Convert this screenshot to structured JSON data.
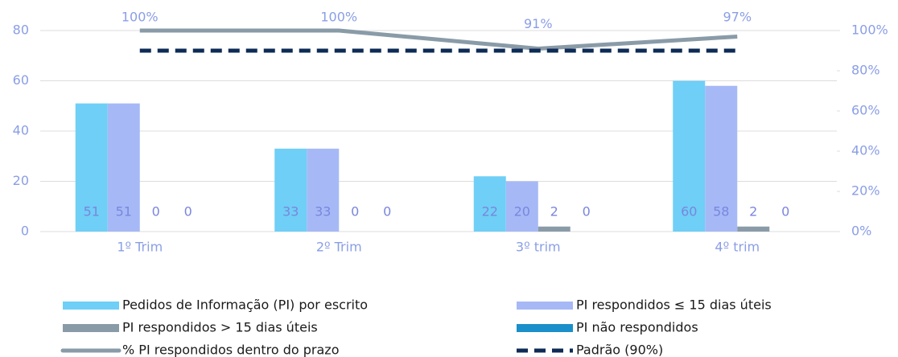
{
  "chart_data": {
    "type": "bar",
    "categories": [
      "1º Trim",
      "2º Trim",
      "3º trim",
      "4º trim"
    ],
    "series": [
      {
        "name": "Pedidos de Informação (PI) por escrito",
        "type": "bar",
        "color": "#6fcff6",
        "values": [
          51,
          33,
          22,
          60
        ]
      },
      {
        "name": "PI respondidos ≤ 15 dias úteis",
        "type": "bar",
        "color": "#a6b9f6",
        "values": [
          51,
          33,
          20,
          58
        ]
      },
      {
        "name": "PI respondidos > 15 dias úteis",
        "type": "bar",
        "color": "#8a9ba8",
        "values": [
          0,
          0,
          2,
          2
        ]
      },
      {
        "name": "PI não respondidos",
        "type": "bar",
        "color": "#1b8fc9",
        "values": [
          0,
          0,
          0,
          0
        ]
      },
      {
        "name": "% PI respondidos dentro do prazo",
        "type": "line",
        "axis": "y2",
        "color": "#8a9ba8",
        "values": [
          100,
          100,
          91,
          97
        ],
        "value_labels": [
          "100%",
          "100%",
          "91%",
          "97%"
        ]
      },
      {
        "name": "Padrão (90%)",
        "type": "line",
        "axis": "y2",
        "style": "dashed",
        "color": "#0d2b55",
        "values": [
          90,
          90,
          90,
          90
        ]
      }
    ],
    "ylim": [
      0,
      80
    ],
    "yticks": [
      0,
      20,
      40,
      60,
      80
    ],
    "y2lim": [
      0,
      100
    ],
    "y2ticks": [
      {
        "value": 0,
        "label": "0%"
      },
      {
        "value": 20,
        "label": "20%"
      },
      {
        "value": 40,
        "label": "40%"
      },
      {
        "value": 60,
        "label": "60%"
      },
      {
        "value": 80,
        "label": "80%"
      },
      {
        "value": 100,
        "label": "100%"
      }
    ],
    "grid": true,
    "legend": "bottom"
  }
}
